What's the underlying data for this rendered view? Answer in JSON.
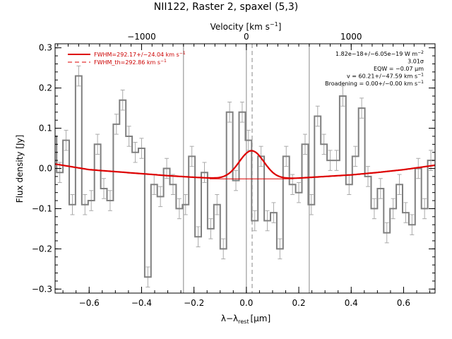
{
  "chart_data": {
    "type": "line",
    "title": "NII122, Raster 2, spaxel (5,3)",
    "xlabel": "λ−λ",
    "xlabel_sub": "rest",
    "xlabel_unit": "[μm]",
    "ylabel": "Flux density [Jy]",
    "top_axis_label": "Velocity [km s",
    "top_axis_label_sup": "−1",
    "top_axis_label_close": "]",
    "xlim": [
      -0.73,
      0.72
    ],
    "ylim": [
      -0.31,
      0.31
    ],
    "x_ticks": [
      -0.6,
      -0.4,
      -0.2,
      0.0,
      0.2,
      0.4,
      0.6
    ],
    "x_tick_labels": [
      "−0.6",
      "−0.4",
      "−0.2",
      "0.0",
      "0.2",
      "0.4",
      "0.6"
    ],
    "y_ticks": [
      -0.3,
      -0.2,
      -0.1,
      0.0,
      0.1,
      0.2,
      0.3
    ],
    "y_tick_labels": [
      "−0.3",
      "−0.2",
      "−0.1",
      "0.0",
      "0.1",
      "0.2",
      "0.3"
    ],
    "top_ticks": [
      -1000,
      0,
      1000
    ],
    "top_tick_labels": [
      "−1000",
      "0",
      "1000"
    ],
    "top_tick_wavelength": [
      -0.4,
      0.0,
      0.4
    ],
    "vertical_lines": [
      {
        "x": -0.24,
        "style": "solid"
      },
      {
        "x": 0.0,
        "style": "solid"
      },
      {
        "x": 0.022,
        "style": "dashed"
      },
      {
        "x": 0.24,
        "style": "solid"
      }
    ],
    "legend": [
      {
        "label": "FWHM=292.17+/−24.04 km s",
        "sup": "−1",
        "style": "solid"
      },
      {
        "label": "FWHM_th=292.86 km s",
        "sup": "−1",
        "style": "dashed"
      }
    ],
    "annotations": [
      {
        "text": "1.82e−18+/−6.05e−19 W m",
        "sup": "−2"
      },
      {
        "text": "3.01σ",
        "sup": ""
      },
      {
        "text": "EQW = −0.07 μm",
        "sup": ""
      },
      {
        "text": "v = 60.21+/−47.59 km s",
        "sup": "−1"
      },
      {
        "text": "Broadening = 0.00+/−0.00 km s",
        "sup": "−1"
      }
    ],
    "series": [
      {
        "kind": "histogram",
        "color": "#808080",
        "x": [
          -0.736,
          -0.712,
          -0.688,
          -0.664,
          -0.64,
          -0.616,
          -0.592,
          -0.568,
          -0.544,
          -0.52,
          -0.496,
          -0.472,
          -0.448,
          -0.424,
          -0.4,
          -0.376,
          -0.352,
          -0.328,
          -0.304,
          -0.28,
          -0.256,
          -0.232,
          -0.208,
          -0.184,
          -0.16,
          -0.136,
          -0.112,
          -0.088,
          -0.064,
          -0.04,
          -0.016,
          0.008,
          0.032,
          0.056,
          0.08,
          0.104,
          0.128,
          0.152,
          0.176,
          0.2,
          0.224,
          0.248,
          0.272,
          0.296,
          0.32,
          0.344,
          0.368,
          0.392,
          0.416,
          0.44,
          0.464,
          0.488,
          0.512,
          0.536,
          0.56,
          0.584,
          0.608,
          0.632,
          0.656,
          0.68,
          0.704
        ],
        "values": [
          0.08,
          -0.01,
          0.07,
          -0.09,
          0.23,
          -0.09,
          -0.08,
          0.06,
          -0.05,
          -0.08,
          0.11,
          0.17,
          0.08,
          0.04,
          0.05,
          -0.27,
          -0.04,
          -0.07,
          0.0,
          -0.04,
          -0.1,
          -0.09,
          0.03,
          -0.17,
          -0.01,
          -0.15,
          -0.09,
          -0.2,
          0.14,
          -0.03,
          0.14,
          0.07,
          -0.13,
          0.03,
          -0.13,
          -0.11,
          -0.2,
          0.03,
          -0.04,
          -0.06,
          0.06,
          -0.09,
          0.13,
          0.06,
          0.02,
          0.02,
          0.18,
          -0.04,
          0.03,
          0.15,
          -0.02,
          -0.1,
          -0.05,
          -0.16,
          -0.1,
          -0.04,
          -0.11,
          -0.14,
          0.0,
          -0.1,
          0.02
        ],
        "errors": [
          0.025,
          0.025,
          0.025,
          0.025,
          0.025,
          0.025,
          0.025,
          0.025,
          0.025,
          0.025,
          0.025,
          0.025,
          0.025,
          0.025,
          0.025,
          0.025,
          0.025,
          0.025,
          0.025,
          0.025,
          0.025,
          0.025,
          0.025,
          0.025,
          0.025,
          0.025,
          0.025,
          0.025,
          0.025,
          0.025,
          0.025,
          0.025,
          0.025,
          0.025,
          0.025,
          0.025,
          0.025,
          0.025,
          0.025,
          0.025,
          0.025,
          0.025,
          0.025,
          0.025,
          0.025,
          0.025,
          0.025,
          0.025,
          0.025,
          0.025,
          0.025,
          0.025,
          0.025,
          0.025,
          0.025,
          0.025,
          0.025,
          0.025,
          0.025,
          0.025,
          0.025
        ]
      },
      {
        "kind": "continuum",
        "color": "#dd0000",
        "x": [
          -0.73,
          -0.6,
          -0.5,
          -0.4,
          -0.3,
          -0.2,
          -0.1,
          0.0,
          0.1,
          0.2,
          0.3,
          0.4,
          0.5,
          0.6,
          0.72
        ],
        "values": [
          0.011,
          -0.003,
          -0.008,
          -0.013,
          -0.018,
          -0.022,
          -0.025,
          -0.026,
          -0.026,
          -0.024,
          -0.02,
          -0.016,
          -0.01,
          -0.003,
          0.008
        ]
      },
      {
        "kind": "gaussian_fit",
        "color": "#dd0000",
        "center": 0.02,
        "amplitude": 0.07,
        "sigma": 0.047,
        "x_range": [
          -0.14,
          0.18
        ]
      },
      {
        "kind": "baseline",
        "color": "#dd0000",
        "x": [
          -0.14,
          0.18
        ],
        "values": [
          -0.026,
          -0.026
        ]
      }
    ]
  }
}
